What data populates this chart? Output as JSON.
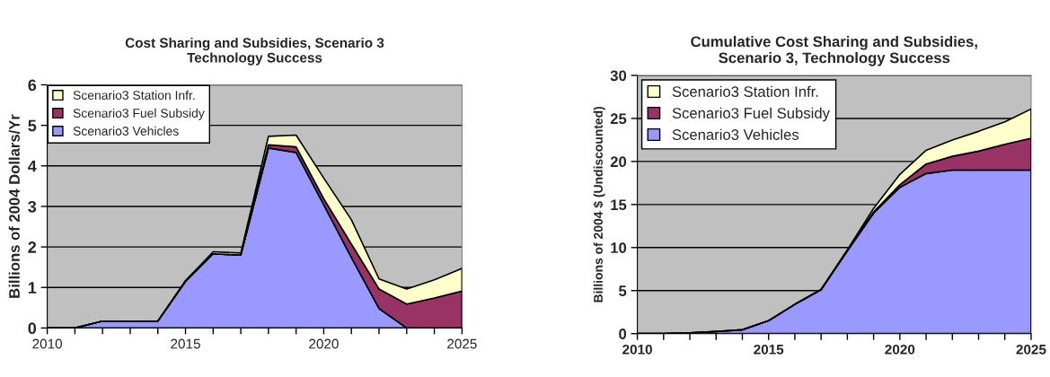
{
  "chart_data": [
    {
      "type": "area",
      "title": "Cost Sharing and Subsidies, Scenario 3\nTechnology Success",
      "ylabel": "Billions of 2004 Dollars/Yr",
      "stacked": true,
      "x": [
        2010,
        2011,
        2012,
        2013,
        2014,
        2015,
        2016,
        2017,
        2018,
        2019,
        2020,
        2021,
        2022,
        2023,
        2024,
        2025
      ],
      "series": [
        {
          "name": "Scenario3 Vehicles",
          "color": "#9999ff",
          "values": [
            0,
            0,
            0.17,
            0.17,
            0.17,
            1.15,
            1.83,
            1.8,
            4.44,
            4.33,
            3.04,
            1.74,
            0.48,
            0,
            0,
            0
          ]
        },
        {
          "name": "Scenario3 Fuel Subsidy",
          "color": "#993366",
          "values": [
            0,
            0,
            0,
            0,
            0,
            0,
            0,
            0,
            0.08,
            0.14,
            0.15,
            0.33,
            0.48,
            0.59,
            0.74,
            0.91
          ]
        },
        {
          "name": "Scenario3 Station Infr.",
          "color": "#ffffcc",
          "values": [
            0,
            0,
            0,
            0,
            0,
            0.02,
            0.05,
            0.05,
            0.21,
            0.29,
            0.51,
            0.6,
            0.25,
            0.37,
            0.45,
            0.56
          ]
        }
      ],
      "xlim": [
        2010,
        2025
      ],
      "ylim": [
        0,
        6
      ],
      "xticks": [
        2010,
        {
          "value": 2011,
          "label": null
        },
        {
          "value": 2012,
          "label": null
        },
        {
          "value": 2013,
          "label": null
        },
        {
          "value": 2014,
          "label": null
        },
        2015,
        {
          "value": 2016,
          "label": null
        },
        {
          "value": 2017,
          "label": null
        },
        {
          "value": 2018,
          "label": null
        },
        {
          "value": 2019,
          "label": null
        },
        2020,
        {
          "value": 2021,
          "label": null
        },
        {
          "value": 2022,
          "label": null
        },
        {
          "value": 2023,
          "label": null
        },
        {
          "value": 2024,
          "label": null
        },
        2025
      ],
      "yticks": [
        0,
        1,
        2,
        3,
        4,
        5,
        6
      ],
      "grid": "y",
      "legend": "top left"
    },
    {
      "type": "area",
      "title": "Cumulative Cost Sharing and Subsidies,\nScenario 3, Technology Success",
      "ylabel": "Billions of 2004 $ (Undiscounted)",
      "stacked": true,
      "x": [
        2010,
        2011,
        2012,
        2013,
        2014,
        2015,
        2016,
        2017,
        2018,
        2019,
        2020,
        2021,
        2022,
        2023,
        2024,
        2025
      ],
      "series": [
        {
          "name": "Scenario3 Vehicles",
          "color": "#9999ff",
          "values": [
            0,
            0,
            0.1,
            0.25,
            0.45,
            1.5,
            3.4,
            5.1,
            9.6,
            14.0,
            17.0,
            18.6,
            19.0,
            19.0,
            19.0,
            19.0
          ]
        },
        {
          "name": "Scenario3 Fuel Subsidy",
          "color": "#993366",
          "values": [
            0,
            0,
            0,
            0,
            0,
            0,
            0,
            0,
            0.05,
            0.15,
            0.3,
            1.1,
            1.6,
            2.2,
            3.0,
            3.7
          ]
        },
        {
          "name": "Scenario3 Station Infr.",
          "color": "#ffffcc",
          "values": [
            0,
            0,
            0,
            0,
            0,
            0,
            0.02,
            0.05,
            0.1,
            0.4,
            1.2,
            1.6,
            1.9,
            2.3,
            2.6,
            3.4
          ]
        }
      ],
      "xlim": [
        2010,
        2025
      ],
      "ylim": [
        0,
        30
      ],
      "xticks": [
        2010,
        {
          "value": 2011,
          "label": null
        },
        {
          "value": 2012,
          "label": null
        },
        {
          "value": 2013,
          "label": null
        },
        {
          "value": 2014,
          "label": null
        },
        2015,
        {
          "value": 2016,
          "label": null
        },
        {
          "value": 2017,
          "label": null
        },
        {
          "value": 2018,
          "label": null
        },
        {
          "value": 2019,
          "label": null
        },
        2020,
        {
          "value": 2021,
          "label": null
        },
        {
          "value": 2022,
          "label": null
        },
        {
          "value": 2023,
          "label": null
        },
        {
          "value": 2024,
          "label": null
        },
        2025
      ],
      "yticks": [
        0,
        5,
        10,
        15,
        20,
        25,
        30
      ],
      "grid": "y",
      "legend": "top left"
    }
  ]
}
